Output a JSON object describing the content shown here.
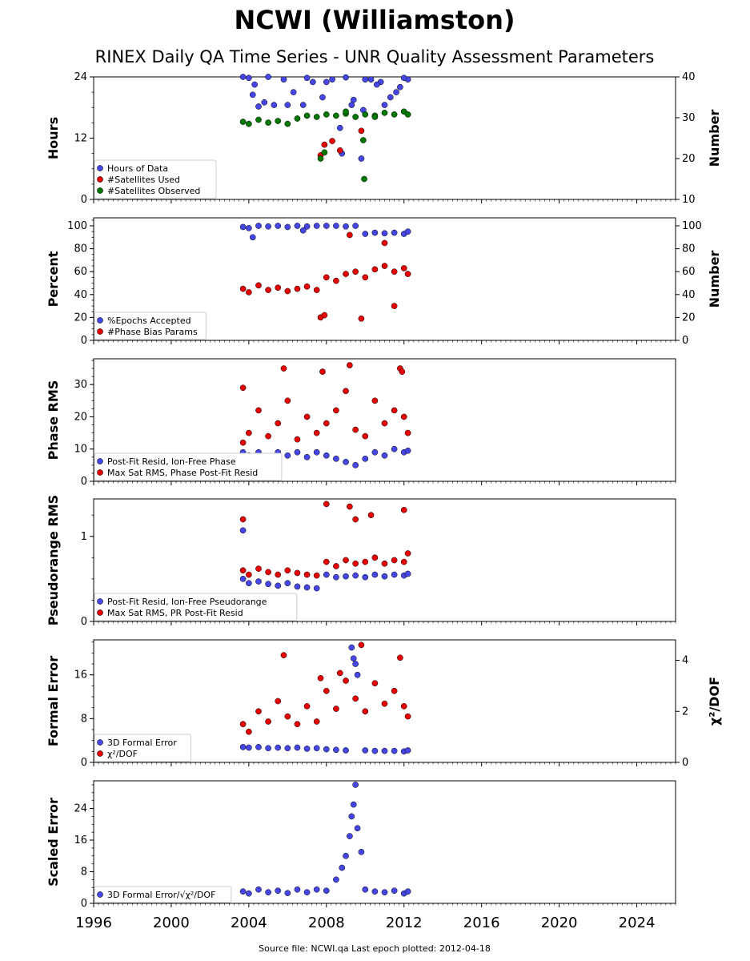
{
  "title": "NCWI (Williamston)",
  "subtitle": "RINEX Daily QA Time Series - UNR Quality Assessment Parameters",
  "source_note": "Source file: NCWI.qa Last epoch plotted: 2012-04-18",
  "colors": {
    "blue": "#4646e6",
    "red": "#e60000",
    "green": "#007800",
    "edge": "#000000"
  },
  "chart_data": [
    {
      "type": "scatter",
      "ylabel": "Hours",
      "ylabel_right": "Number",
      "ylim": [
        0,
        24
      ],
      "yticks": [
        0,
        12,
        24
      ],
      "ylim_right": [
        10,
        40
      ],
      "yticks_right": [
        10,
        20,
        30,
        40
      ],
      "legend_placement": "lower-left",
      "series": [
        {
          "name": "Hours of Data",
          "color": "blue",
          "axis": "left",
          "x": [
            2003.7,
            2004.0,
            2004.3,
            2004.8,
            2005.3,
            2005.8,
            2006.3,
            2006.8,
            2007.3,
            2007.8,
            2008.3,
            2008.8,
            2009.3,
            2009.8,
            2010.3,
            2010.8,
            2011.3,
            2011.8,
            2012.2,
            2004.5,
            2005.0,
            2006.0,
            2007.0,
            2008.0,
            2009.0,
            2010.0,
            2011.0,
            2012.0,
            2008.7,
            2009.4,
            2009.9,
            2010.6,
            2011.6,
            2004.2
          ],
          "y": [
            24,
            23.8,
            22.5,
            19,
            18.5,
            23.5,
            21,
            18.5,
            23,
            20,
            23.5,
            9,
            18.5,
            8,
            23.5,
            23,
            20,
            22,
            23.5,
            18.2,
            24,
            18.5,
            23.8,
            23,
            23.9,
            23.5,
            18.5,
            23.8,
            14,
            19.5,
            17.5,
            22.5,
            21,
            20.5
          ]
        },
        {
          "name": "#Satellites Used",
          "color": "red",
          "axis": "right",
          "x": [
            2007.7,
            2007.9,
            2008.3,
            2008.7,
            2009.8
          ],
          "y": [
            20.8,
            23.4,
            24.3,
            22,
            26.8
          ]
        },
        {
          "name": "#Satellites Observed",
          "color": "green",
          "axis": "right",
          "x": [
            2003.7,
            2004.0,
            2004.5,
            2005.0,
            2005.5,
            2006.0,
            2006.5,
            2007.0,
            2007.5,
            2008.0,
            2008.5,
            2009.0,
            2009.5,
            2010.0,
            2010.5,
            2011.0,
            2011.5,
            2012.0,
            2012.2,
            2007.7,
            2007.9,
            2009.9,
            2009.95,
            2009.0,
            2010.5
          ],
          "y": [
            29,
            28.5,
            29.5,
            28.8,
            29.2,
            28.5,
            29.8,
            30.5,
            30.2,
            30.8,
            30.5,
            31,
            30.2,
            30.8,
            30.5,
            31.2,
            30.8,
            31.5,
            30.8,
            20,
            21.5,
            24.5,
            15,
            31.5,
            30.2
          ]
        }
      ]
    },
    {
      "type": "scatter",
      "ylabel": "Percent",
      "ylabel_right": "Number",
      "ylim": [
        0,
        107
      ],
      "yticks": [
        0,
        20,
        40,
        60,
        80,
        100
      ],
      "ylim_right": [
        0,
        107
      ],
      "yticks_right": [
        0,
        20,
        40,
        60,
        80,
        100
      ],
      "legend_placement": "lower-left",
      "series": [
        {
          "name": "%Epochs Accepted",
          "color": "blue",
          "axis": "left",
          "x": [
            2003.7,
            2004.0,
            2004.5,
            2005.0,
            2005.5,
            2006.0,
            2006.5,
            2007.0,
            2007.5,
            2008.0,
            2008.5,
            2009.0,
            2009.5,
            2010.0,
            2010.5,
            2011.0,
            2011.5,
            2012.0,
            2012.2,
            2004.2,
            2006.8
          ],
          "y": [
            99,
            98,
            100,
            99.5,
            100,
            99,
            100,
            99.5,
            100,
            100,
            100,
            99.5,
            100,
            93,
            94,
            93.5,
            94,
            93,
            95,
            90,
            96
          ]
        },
        {
          "name": "#Phase Bias Params",
          "color": "red",
          "axis": "right",
          "x": [
            2003.7,
            2004.0,
            2004.5,
            2005.0,
            2005.5,
            2006.0,
            2006.5,
            2007.0,
            2007.5,
            2008.0,
            2008.5,
            2009.0,
            2009.5,
            2010.0,
            2010.5,
            2011.0,
            2011.5,
            2012.0,
            2012.2,
            2007.7,
            2007.9,
            2009.8,
            2011.5,
            2009.2,
            2011.0
          ],
          "y": [
            45,
            42,
            48,
            44,
            46,
            43,
            45,
            47,
            44,
            55,
            52,
            58,
            60,
            55,
            62,
            65,
            60,
            63,
            58,
            20,
            22,
            19,
            30,
            92,
            85
          ]
        }
      ]
    },
    {
      "type": "scatter",
      "ylabel": "Phase RMS",
      "ylim": [
        0,
        38
      ],
      "yticks": [
        0,
        10,
        20,
        30
      ],
      "legend_placement": "lower-left",
      "series": [
        {
          "name": "Post-Fit Resid, Ion-Free Phase",
          "color": "blue",
          "axis": "left",
          "x": [
            2003.7,
            2004.0,
            2004.5,
            2005.0,
            2005.5,
            2006.0,
            2006.5,
            2007.0,
            2007.5,
            2008.0,
            2008.5,
            2009.0,
            2009.5,
            2010.0,
            2010.5,
            2011.0,
            2011.5,
            2012.0,
            2012.2
          ],
          "y": [
            9,
            8,
            9,
            7.5,
            9,
            8,
            9,
            7.5,
            9,
            8,
            7,
            6,
            5,
            7,
            9,
            8,
            10,
            9,
            9.5
          ]
        },
        {
          "name": "Max Sat RMS, Phase Post-Fit Resid",
          "color": "red",
          "axis": "left",
          "x": [
            2003.7,
            2004.0,
            2004.5,
            2005.0,
            2005.5,
            2006.0,
            2006.5,
            2007.0,
            2007.5,
            2008.0,
            2008.5,
            2009.0,
            2009.5,
            2010.0,
            2010.5,
            2011.0,
            2011.5,
            2012.0,
            2012.2,
            2005.8,
            2007.8,
            2009.2,
            2011.8,
            2011.9,
            2003.7
          ],
          "y": [
            12,
            15,
            22,
            14,
            18,
            25,
            13,
            20,
            15,
            18,
            22,
            28,
            16,
            14,
            25,
            18,
            22,
            20,
            15,
            35,
            34,
            36,
            35,
            34,
            29
          ]
        }
      ]
    },
    {
      "type": "scatter",
      "ylabel": "Pseudorange RMS",
      "ylim": [
        0,
        1.44
      ],
      "yticks": [
        0,
        1
      ],
      "legend_placement": "lower-left",
      "series": [
        {
          "name": "Post-Fit Resid, Ion-Free Pseudorange",
          "color": "blue",
          "axis": "left",
          "x": [
            2003.7,
            2004.0,
            2004.5,
            2005.0,
            2005.5,
            2006.0,
            2006.5,
            2007.0,
            2007.5,
            2008.0,
            2008.5,
            2009.0,
            2009.5,
            2010.0,
            2010.5,
            2011.0,
            2011.5,
            2012.0,
            2012.2,
            2003.7
          ],
          "y": [
            0.5,
            0.45,
            0.47,
            0.44,
            0.42,
            0.45,
            0.41,
            0.4,
            0.39,
            0.55,
            0.52,
            0.53,
            0.54,
            0.52,
            0.55,
            0.53,
            0.55,
            0.54,
            0.56,
            1.07
          ]
        },
        {
          "name": "Max Sat RMS, PR Post-Fit Resid",
          "color": "red",
          "axis": "left",
          "x": [
            2003.7,
            2004.0,
            2004.5,
            2005.0,
            2005.5,
            2006.0,
            2006.5,
            2007.0,
            2007.5,
            2008.0,
            2008.5,
            2009.0,
            2009.5,
            2010.0,
            2010.5,
            2011.0,
            2011.5,
            2012.0,
            2012.2,
            2003.7,
            2008.0,
            2009.2,
            2012.0,
            2009.5,
            2010.3
          ],
          "y": [
            0.6,
            0.55,
            0.62,
            0.58,
            0.55,
            0.6,
            0.57,
            0.55,
            0.54,
            0.7,
            0.65,
            0.72,
            0.68,
            0.7,
            0.75,
            0.68,
            0.72,
            0.7,
            0.8,
            1.2,
            1.38,
            1.35,
            1.31,
            1.2,
            1.25
          ]
        }
      ]
    },
    {
      "type": "scatter",
      "ylabel": "Formal Error",
      "ylabel_right": "χ²/DOF",
      "ylim": [
        0,
        22.4
      ],
      "yticks": [
        0,
        8,
        16
      ],
      "ylim_right": [
        0,
        4.8
      ],
      "yticks_right": [
        0,
        2,
        4
      ],
      "legend_placement": "lower-left",
      "series": [
        {
          "name": "3D Formal Error",
          "color": "blue",
          "axis": "left",
          "x": [
            2003.7,
            2004.0,
            2004.5,
            2005.0,
            2005.5,
            2006.0,
            2006.5,
            2007.0,
            2007.5,
            2008.0,
            2008.5,
            2009.0,
            2009.3,
            2009.4,
            2009.5,
            2009.6,
            2010.0,
            2010.5,
            2011.0,
            2011.5,
            2012.0,
            2012.2
          ],
          "y": [
            2.8,
            2.7,
            2.8,
            2.6,
            2.7,
            2.6,
            2.7,
            2.5,
            2.6,
            2.4,
            2.3,
            2.2,
            21,
            19,
            18,
            16,
            2.2,
            2.1,
            2.1,
            2.1,
            2.0,
            2.2
          ]
        },
        {
          "name": "χ²/DOF",
          "color": "red",
          "axis": "right",
          "x": [
            2003.7,
            2004.0,
            2004.5,
            2005.0,
            2005.5,
            2006.0,
            2006.5,
            2007.0,
            2007.5,
            2008.0,
            2008.5,
            2009.0,
            2009.5,
            2010.0,
            2010.5,
            2011.0,
            2011.5,
            2012.0,
            2012.2,
            2005.8,
            2009.8,
            2011.8,
            2008.7,
            2007.7
          ],
          "y": [
            1.5,
            1.2,
            2.0,
            1.6,
            2.4,
            1.8,
            1.5,
            2.2,
            1.6,
            2.8,
            2.1,
            3.2,
            2.5,
            2.0,
            3.1,
            2.3,
            2.8,
            2.2,
            1.8,
            4.2,
            4.6,
            4.1,
            3.5,
            3.3
          ]
        }
      ]
    },
    {
      "type": "scatter",
      "ylabel": "Scaled Error",
      "ylim": [
        0,
        31
      ],
      "yticks": [
        0,
        8,
        16,
        24
      ],
      "legend_placement": "lower-left",
      "series": [
        {
          "name": "3D Formal Error/√χ²/DOF",
          "color": "blue",
          "axis": "left",
          "x": [
            2003.7,
            2004.0,
            2004.5,
            2005.0,
            2005.5,
            2006.0,
            2006.5,
            2007.0,
            2007.5,
            2008.0,
            2008.5,
            2008.8,
            2009.0,
            2009.2,
            2009.3,
            2009.4,
            2009.5,
            2009.6,
            2009.8,
            2010.0,
            2010.5,
            2011.0,
            2011.5,
            2012.0,
            2012.2
          ],
          "y": [
            3,
            2.5,
            3.5,
            2.8,
            3.2,
            2.6,
            3.5,
            2.8,
            3.5,
            3.2,
            6,
            9,
            12,
            17,
            22,
            25,
            30,
            19,
            13,
            3.5,
            3,
            2.8,
            3.2,
            2.5,
            3
          ]
        }
      ]
    }
  ],
  "x_axis": {
    "range": [
      1996,
      2026
    ],
    "ticks": [
      "1996",
      "2000",
      "2004",
      "2008",
      "2012",
      "2016",
      "2020",
      "2024"
    ]
  }
}
